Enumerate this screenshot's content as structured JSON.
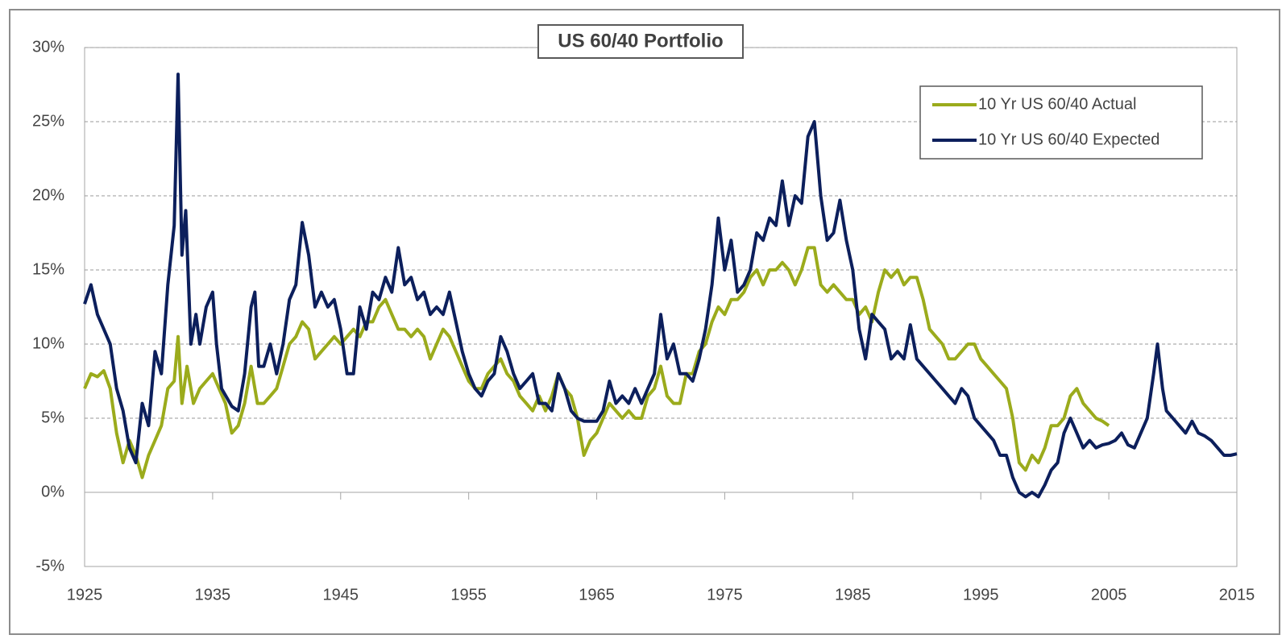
{
  "chart_data": {
    "type": "line",
    "title": "US 60/40 Portfolio",
    "xlim": [
      1925,
      2015
    ],
    "xticks": [
      1925,
      1935,
      1945,
      1955,
      1965,
      1975,
      1985,
      1995,
      2005,
      2015
    ],
    "ylim": [
      -5,
      30
    ],
    "yticks": [
      {
        "value": -5,
        "label": "-5%"
      },
      {
        "value": 0,
        "label": "0%"
      },
      {
        "value": 5,
        "label": "5%"
      },
      {
        "value": 10,
        "label": "10%"
      },
      {
        "value": 15,
        "label": "15%"
      },
      {
        "value": 20,
        "label": "20%"
      },
      {
        "value": 25,
        "label": "25%"
      },
      {
        "value": 30,
        "label": "30%"
      }
    ],
    "grid": true,
    "legend": "upper right",
    "series": [
      {
        "name": "10 Yr US 60/40 Actual",
        "color": "#9bab1c",
        "x": [
          1925,
          1925.5,
          1926,
          1926.5,
          1927,
          1927.5,
          1928,
          1928.5,
          1929,
          1929.5,
          1930,
          1930.5,
          1931,
          1931.5,
          1932,
          1932.3,
          1932.6,
          1933,
          1933.5,
          1934,
          1934.5,
          1935,
          1935.5,
          1936,
          1936.5,
          1937,
          1937.5,
          1938,
          1938.5,
          1939,
          1939.5,
          1940,
          1940.5,
          1941,
          1941.5,
          1942,
          1942.5,
          1943,
          1943.5,
          1944,
          1944.5,
          1945,
          1945.5,
          1946,
          1946.5,
          1947,
          1947.5,
          1948,
          1948.5,
          1949,
          1949.5,
          1950,
          1950.5,
          1951,
          1951.5,
          1952,
          1952.5,
          1953,
          1953.5,
          1954,
          1954.5,
          1955,
          1955.5,
          1956,
          1956.5,
          1957,
          1957.5,
          1958,
          1958.5,
          1959,
          1959.5,
          1960,
          1960.5,
          1961,
          1961.5,
          1962,
          1962.5,
          1963,
          1963.5,
          1964,
          1964.5,
          1965,
          1965.5,
          1966,
          1966.5,
          1967,
          1967.5,
          1968,
          1968.5,
          1969,
          1969.5,
          1970,
          1970.5,
          1971,
          1971.5,
          1972,
          1972.5,
          1973,
          1973.5,
          1974,
          1974.5,
          1975,
          1975.5,
          1976,
          1976.5,
          1977,
          1977.5,
          1978,
          1978.5,
          1979,
          1979.5,
          1980,
          1980.5,
          1981,
          1981.5,
          1982,
          1982.5,
          1983,
          1983.5,
          1984,
          1984.5,
          1985,
          1985.5,
          1986,
          1986.5,
          1987,
          1987.5,
          1988,
          1988.5,
          1989,
          1989.5,
          1990,
          1990.5,
          1991,
          1991.5,
          1992,
          1992.5,
          1993,
          1993.5,
          1994,
          1994.5,
          1995,
          1995.5,
          1996,
          1996.5,
          1997,
          1997.5,
          1998,
          1998.5,
          1999,
          1999.5,
          2000,
          2000.5,
          2001,
          2001.5,
          2002,
          2002.5,
          2003,
          2003.5,
          2004,
          2004.5,
          2005
        ],
        "values": [
          7,
          8,
          7.8,
          8.2,
          7,
          4,
          2,
          3.5,
          2.5,
          1,
          2.5,
          3.5,
          4.5,
          7,
          7.5,
          10.5,
          6,
          8.5,
          6,
          7,
          7.5,
          8,
          7,
          6,
          4,
          4.5,
          6,
          8.5,
          6,
          6,
          6.5,
          7,
          8.5,
          10,
          10.5,
          11.5,
          11,
          9,
          9.5,
          10,
          10.5,
          10,
          10.5,
          11,
          10.5,
          11.5,
          11.5,
          12.5,
          13,
          12,
          11,
          11,
          10.5,
          11,
          10.5,
          9,
          10,
          11,
          10.5,
          9.5,
          8.5,
          7.5,
          7,
          7,
          8,
          8.5,
          9,
          8,
          7.5,
          6.5,
          6,
          5.5,
          6.5,
          5.5,
          6.5,
          8,
          7,
          6.5,
          5,
          2.5,
          3.5,
          4,
          5,
          6,
          5.5,
          5,
          5.5,
          5,
          5,
          6.5,
          7,
          8.5,
          6.5,
          6,
          6,
          8,
          8,
          9.5,
          10,
          11.5,
          12.5,
          12,
          13,
          13,
          13.5,
          14.5,
          15,
          14,
          15,
          15,
          15.5,
          15,
          14,
          15,
          16.5,
          16.5,
          14,
          13.5,
          14,
          13.5,
          13,
          13,
          12,
          12.5,
          11.5,
          13.5,
          15,
          14.5,
          15,
          14,
          14.5,
          14.5,
          13,
          11,
          10.5,
          10,
          9,
          9,
          9.5,
          10,
          10,
          9,
          8.5,
          8,
          7.5,
          7,
          5,
          2,
          1.5,
          2.5,
          2,
          3,
          4.5,
          4.5,
          5,
          6.5,
          7,
          6,
          5.5,
          5,
          4.8,
          4.5
        ]
      },
      {
        "name": "10 Yr US 60/40 Expected",
        "color": "#0c1f5c",
        "x": [
          1925,
          1925.5,
          1926,
          1927,
          1927.5,
          1928,
          1928.5,
          1929,
          1929.5,
          1930,
          1930.5,
          1931,
          1931.5,
          1932,
          1932.3,
          1932.6,
          1932.9,
          1933.3,
          1933.7,
          1934,
          1934.5,
          1935,
          1935.3,
          1935.7,
          1936.5,
          1937,
          1937.5,
          1938,
          1938.3,
          1938.6,
          1939,
          1939.5,
          1940,
          1940.5,
          1941,
          1941.5,
          1942,
          1942.5,
          1943,
          1943.5,
          1944,
          1944.5,
          1945,
          1945.5,
          1946,
          1946.5,
          1947,
          1947.5,
          1948,
          1948.5,
          1949,
          1949.5,
          1950,
          1950.5,
          1951,
          1951.5,
          1952,
          1952.5,
          1953,
          1953.5,
          1954,
          1954.5,
          1955,
          1955.5,
          1956,
          1956.5,
          1957,
          1957.5,
          1958,
          1958.5,
          1959,
          1959.5,
          1960,
          1960.5,
          1961,
          1961.5,
          1962,
          1962.5,
          1963,
          1963.5,
          1964,
          1965,
          1965.5,
          1966,
          1966.5,
          1967,
          1967.5,
          1968,
          1968.5,
          1969,
          1969.5,
          1970,
          1970.5,
          1971,
          1971.5,
          1972,
          1972.5,
          1973,
          1973.5,
          1974,
          1974.5,
          1975,
          1975.5,
          1976,
          1976.5,
          1977,
          1977.5,
          1978,
          1978.5,
          1979,
          1979.5,
          1980,
          1980.5,
          1981,
          1981.5,
          1982,
          1982.5,
          1983,
          1983.5,
          1984,
          1984.5,
          1985,
          1985.5,
          1986,
          1986.5,
          1987,
          1987.5,
          1988,
          1988.5,
          1989,
          1989.5,
          1990,
          1990.5,
          1991,
          1991.5,
          1992,
          1992.5,
          1993,
          1993.5,
          1994,
          1994.5,
          1995,
          1995.5,
          1996,
          1996.5,
          1997,
          1997.5,
          1998,
          1998.5,
          1999,
          1999.5,
          2000,
          2000.5,
          2001,
          2001.5,
          2002,
          2002.5,
          2003,
          2003.5,
          2004,
          2004.5,
          2005,
          2005.5,
          2006,
          2006.5,
          2007,
          2007.5,
          2008,
          2008.5,
          2008.8,
          2009.2,
          2009.5,
          2010,
          2010.5,
          2011,
          2011.5,
          2012,
          2012.5,
          2013,
          2013.5,
          2014,
          2014.5,
          2015
        ],
        "values": [
          12.7,
          14,
          12,
          10,
          7,
          5.5,
          3,
          2,
          6,
          4.5,
          9.5,
          8,
          14,
          18,
          28.2,
          16,
          19,
          10,
          12,
          10,
          12.5,
          13.5,
          10,
          7,
          5.8,
          5.5,
          8,
          12.5,
          13.5,
          8.5,
          8.5,
          10,
          8,
          10,
          13,
          14,
          18.2,
          16,
          12.5,
          13.5,
          12.5,
          13,
          11,
          8,
          8,
          12.5,
          11,
          13.5,
          13,
          14.5,
          13.5,
          16.5,
          14,
          14.5,
          13,
          13.5,
          12,
          12.5,
          12,
          13.5,
          11.5,
          9.5,
          8,
          7,
          6.5,
          7.5,
          8,
          10.5,
          9.5,
          8,
          7,
          7.5,
          8,
          6,
          6,
          5.5,
          8,
          7,
          5.5,
          5,
          4.8,
          4.8,
          5.5,
          7.5,
          6,
          6.5,
          6,
          7,
          6,
          7,
          8,
          12,
          9,
          10,
          8,
          8,
          7.5,
          9,
          11,
          14,
          18.5,
          15,
          17,
          13.5,
          14,
          15,
          17.5,
          17,
          18.5,
          18,
          21,
          18,
          20,
          19.5,
          24,
          25,
          20,
          17,
          17.5,
          19.7,
          17,
          15,
          11,
          9,
          12,
          11.5,
          11,
          9,
          9.5,
          9,
          11.3,
          9,
          8.5,
          8,
          7.5,
          7,
          6.5,
          6,
          7,
          6.5,
          5,
          4.5,
          4,
          3.5,
          2.5,
          2.5,
          1,
          0,
          -0.3,
          0,
          -0.3,
          0.5,
          1.5,
          2,
          4,
          5,
          4,
          3,
          3.5,
          3,
          3.2,
          3.3,
          3.5,
          4,
          3.2,
          3,
          4,
          5,
          8,
          10,
          7,
          5.5,
          5,
          4.5,
          4,
          4.8,
          4,
          3.8,
          3.5,
          3,
          2.5,
          2.5,
          2.6
        ]
      }
    ]
  }
}
